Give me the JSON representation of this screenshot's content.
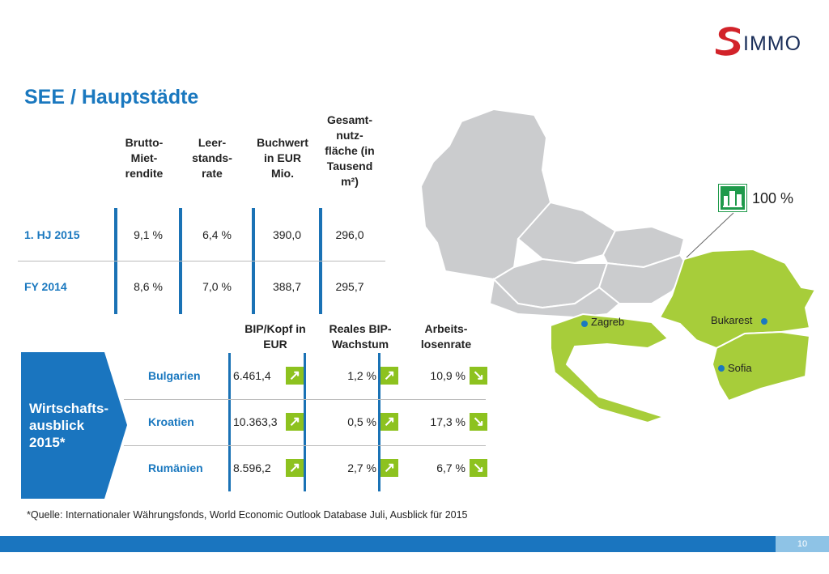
{
  "logo": {
    "text": "IMMO",
    "brand": "S IMMO"
  },
  "title": "SEE / Hauptstädte",
  "table1": {
    "headers": [
      "Brutto-\nMiet-\nrendite",
      "Leer-\nstands-\nrate",
      "Buchwert\nin EUR\nMio.",
      "Gesamt-\nnutz-\nfläche (in\nTausend\nm²)"
    ],
    "rows": [
      {
        "label": "1. HJ 2015",
        "values": [
          "9,1 %",
          "6,4 %",
          "390,0",
          "296,0"
        ]
      },
      {
        "label": "FY 2014",
        "values": [
          "8,6 %",
          "7,0 %",
          "388,7",
          "295,7"
        ]
      }
    ]
  },
  "outlook": {
    "label": "Wirtschafts-\nausblick\n2015*",
    "headers": [
      "BIP/Kopf in\nEUR",
      "Reales BIP-\nWachstum",
      "Arbeits-\nlosenrate"
    ],
    "rows": [
      {
        "country": "Bulgarien",
        "values": [
          "6.461,4",
          "1,2 %",
          "10,9 %"
        ],
        "trends": [
          "up",
          "up",
          "down"
        ]
      },
      {
        "country": "Kroatien",
        "values": [
          "10.363,3",
          "0,5 %",
          "17,3 %"
        ],
        "trends": [
          "up",
          "up",
          "down"
        ]
      },
      {
        "country": "Rumänien",
        "values": [
          "8.596,2",
          "2,7 %",
          "6,7 %"
        ],
        "trends": [
          "up",
          "up",
          "down"
        ]
      }
    ]
  },
  "footnote": "*Quelle: Internationaler Währungsfonds, World Economic Outlook Database Juli, Ausblick für 2015",
  "map": {
    "cities": [
      "Zagreb",
      "Bukarest",
      "Sofia"
    ],
    "share": "100 %"
  },
  "page_number": "10",
  "colors": {
    "blue": "#1a78bf",
    "green": "#a7cd3a",
    "arrow_green": "#8dc21f",
    "gray": "#cbccce",
    "red": "#d2232a"
  }
}
